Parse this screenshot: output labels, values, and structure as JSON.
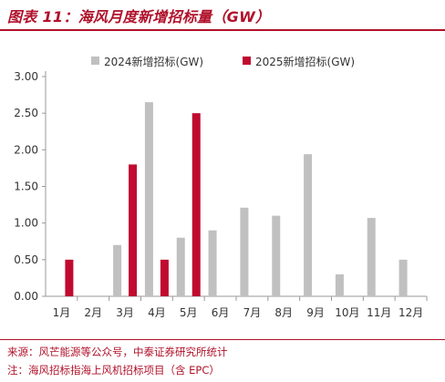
{
  "figure": {
    "title": "图表 11：海风月度新增招标量（GW）",
    "source": "来源：风芒能源等公众号，中泰证券研究所统计",
    "note": "注：海风招标指海上风机招标项目（含 EPC）"
  },
  "chart_data": {
    "type": "bar",
    "categories": [
      "1月",
      "2月",
      "3月",
      "4月",
      "5月",
      "6月",
      "7月",
      "8月",
      "9月",
      "10月",
      "11月",
      "12月"
    ],
    "series": [
      {
        "name": "2024新增招标(GW)",
        "color": "#c0c0c0",
        "values": [
          0,
          0,
          0.7,
          2.65,
          0.8,
          0.9,
          1.21,
          1.1,
          1.94,
          0.3,
          1.07,
          0.5
        ]
      },
      {
        "name": "2025新增招标(GW)",
        "color": "#c00a2f",
        "values": [
          0.5,
          null,
          1.8,
          0.5,
          2.5,
          null,
          null,
          null,
          null,
          null,
          null,
          null
        ]
      }
    ],
    "ylim": [
      0,
      3.0
    ],
    "yticks": [
      "0.00",
      "0.50",
      "1.00",
      "1.50",
      "2.00",
      "2.50",
      "3.00"
    ],
    "legend_position": "top",
    "grid": false
  }
}
